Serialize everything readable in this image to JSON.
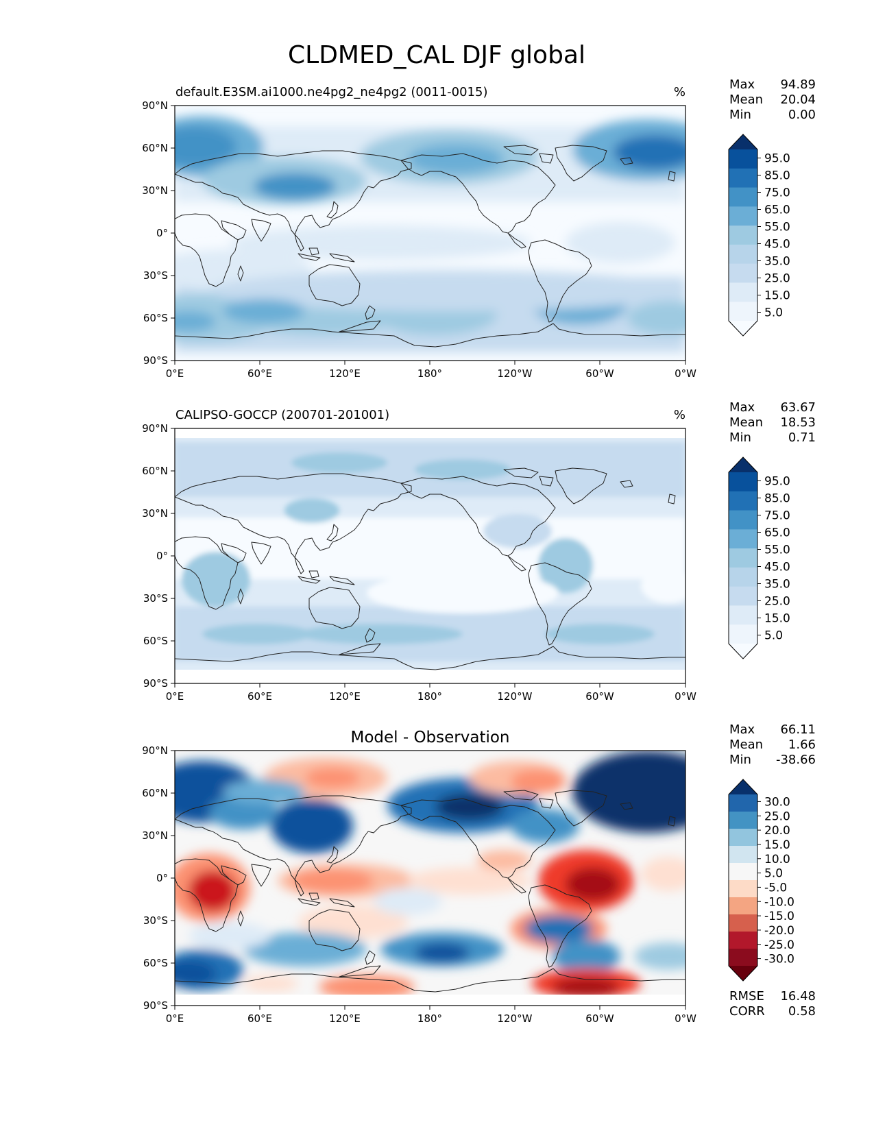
{
  "figure_title": "CLDMED_CAL DJF global",
  "lat_ticks": [
    "90°N",
    "60°N",
    "30°N",
    "0°",
    "30°S",
    "60°S",
    "90°S"
  ],
  "lon_ticks": [
    "0°E",
    "60°E",
    "120°E",
    "180°",
    "120°W",
    "60°W",
    "0°W"
  ],
  "colors": {
    "blues": [
      "#f7fbff",
      "#deebf7",
      "#c6dbef",
      "#9ecae1",
      "#6baed6",
      "#4292c6",
      "#2171b5",
      "#08519c",
      "#08306b"
    ],
    "reds": [
      "#fee0d2",
      "#fcbba1",
      "#fc9272",
      "#ef3b2c",
      "#cb181d",
      "#a50f15",
      "#67000d"
    ],
    "neutral": "#f7f7f7",
    "land_outline": "#222222"
  },
  "panels": [
    {
      "left_title": "default.E3SM.ai1000.ne4pg2_ne4pg2 (0011-0015)",
      "center_title": "",
      "units": "%",
      "stats": [
        {
          "label": "Max",
          "value": "94.89"
        },
        {
          "label": "Mean",
          "value": "20.04"
        },
        {
          "label": "Min",
          "value": "0.00"
        }
      ],
      "colorbar": {
        "cmap": "blues",
        "labels": [
          "95.0",
          "85.0",
          "75.0",
          "65.0",
          "55.0",
          "45.0",
          "35.0",
          "25.0",
          "15.0",
          "5.0"
        ]
      },
      "extra_stats": []
    },
    {
      "left_title": "CALIPSO-GOCCP (200701-201001)",
      "center_title": "",
      "units": "%",
      "stats": [
        {
          "label": "Max",
          "value": "63.67"
        },
        {
          "label": "Mean",
          "value": "18.53"
        },
        {
          "label": "Min",
          "value": "0.71"
        }
      ],
      "colorbar": {
        "cmap": "blues",
        "labels": [
          "95.0",
          "85.0",
          "75.0",
          "65.0",
          "55.0",
          "45.0",
          "35.0",
          "25.0",
          "15.0",
          "5.0"
        ]
      },
      "extra_stats": []
    },
    {
      "left_title": "",
      "center_title": "Model - Observation",
      "units": "",
      "stats": [
        {
          "label": "Max",
          "value": "66.11"
        },
        {
          "label": "Mean",
          "value": "1.66"
        },
        {
          "label": "Min",
          "value": "-38.66"
        }
      ],
      "colorbar": {
        "cmap": "diverging",
        "labels": [
          "30.0",
          "25.0",
          "20.0",
          "15.0",
          "10.0",
          "5.0",
          "-5.0",
          "-10.0",
          "-15.0",
          "-20.0",
          "-25.0",
          "-30.0"
        ]
      },
      "extra_stats": [
        {
          "label": "RMSE",
          "value": "16.48"
        },
        {
          "label": "CORR",
          "value": "0.58"
        }
      ]
    }
  ]
}
